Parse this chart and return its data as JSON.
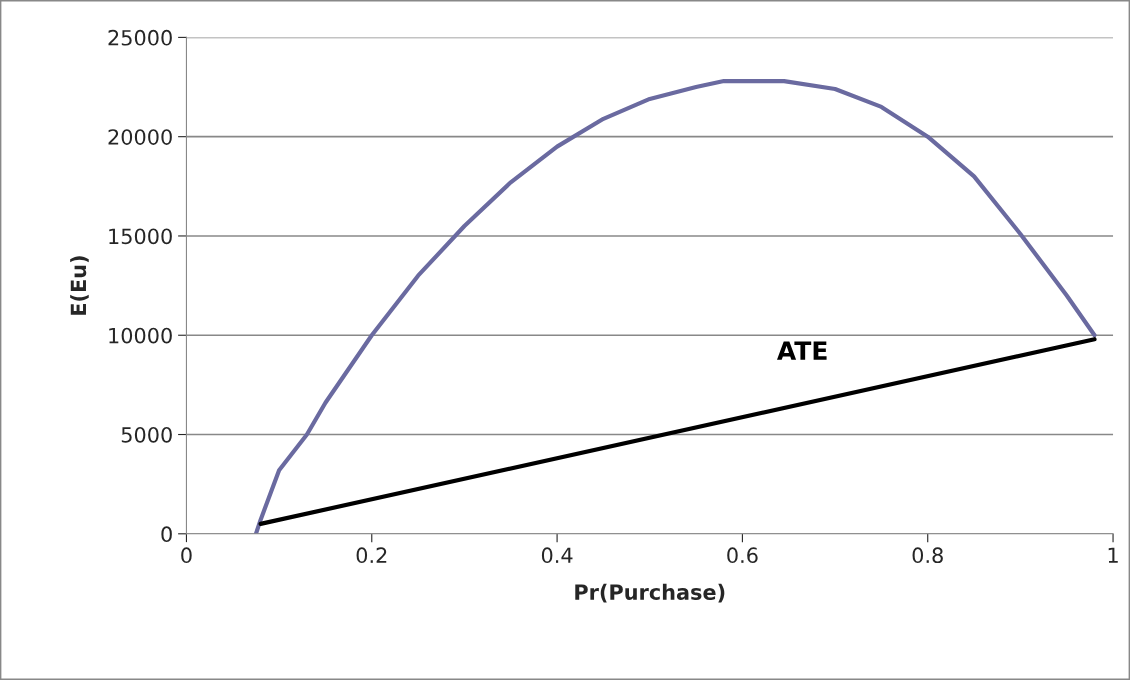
{
  "chart_data": {
    "type": "line",
    "xlabel": "Pr(Purchase)",
    "ylabel": "E(Eu)",
    "series": [
      {
        "color": "#6a6aa0",
        "x": [
          0.075,
          0.08,
          0.1,
          0.13,
          0.15,
          0.2,
          0.25,
          0.3,
          0.35,
          0.4,
          0.45,
          0.5,
          0.55,
          0.58,
          0.6,
          0.645,
          0.7,
          0.75,
          0.8,
          0.85,
          0.9,
          0.95,
          0.98
        ],
        "values": [
          0,
          700,
          3200,
          5000,
          6600,
          10000,
          13000,
          15500,
          17700,
          19500,
          20900,
          21900,
          22500,
          22800,
          22800,
          22800,
          22400,
          21500,
          20000,
          18000,
          15100,
          12000,
          10000
        ]
      },
      {
        "name": "ATE",
        "color": "#000000",
        "x": [
          0.08,
          0.98
        ],
        "values": [
          500,
          9800
        ]
      }
    ],
    "xlim": [
      0,
      1
    ],
    "xticks": [
      0,
      0.2,
      0.4,
      0.6,
      0.8,
      1
    ],
    "ylim": [
      0,
      25000
    ],
    "yticks": [
      0,
      5000,
      10000,
      15000,
      20000,
      25000
    ],
    "grid": "y",
    "legend": false
  }
}
